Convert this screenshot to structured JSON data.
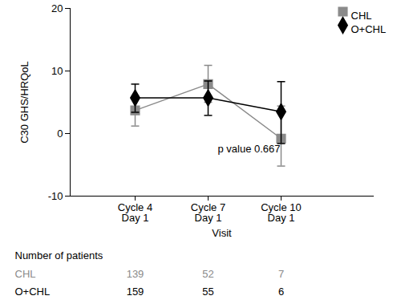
{
  "chart_data": {
    "type": "line",
    "x_label": "Visit",
    "y_label": "C30 GHS/HRQoL",
    "categories": [
      "Cycle 4\nDay 1",
      "Cycle 7\nDay 1",
      "Cycle 10\nDay 1"
    ],
    "ylim": [
      -10,
      20
    ],
    "yticks": [
      -10,
      0,
      10,
      20
    ],
    "grid": false,
    "legend": "top-right",
    "series": [
      {
        "name": "CHL",
        "color": "#8a8a8a",
        "marker": "square",
        "values": [
          3.7,
          7.9,
          -0.8
        ],
        "error_lower": [
          1.2,
          5.0,
          -5.2
        ],
        "error_upper": [
          6.0,
          10.9,
          4.4
        ],
        "patients": [
          139,
          52,
          7
        ]
      },
      {
        "name": "O+CHL",
        "color": "#000000",
        "marker": "diamond",
        "values": [
          5.7,
          5.7,
          3.5
        ],
        "error_lower": [
          3.4,
          2.9,
          -1.6
        ],
        "error_upper": [
          7.9,
          8.4,
          8.3
        ],
        "patients": [
          159,
          55,
          6
        ]
      }
    ],
    "annotations": [
      {
        "text": "p value 0.667"
      }
    ],
    "patients_title": "Number of patients"
  }
}
